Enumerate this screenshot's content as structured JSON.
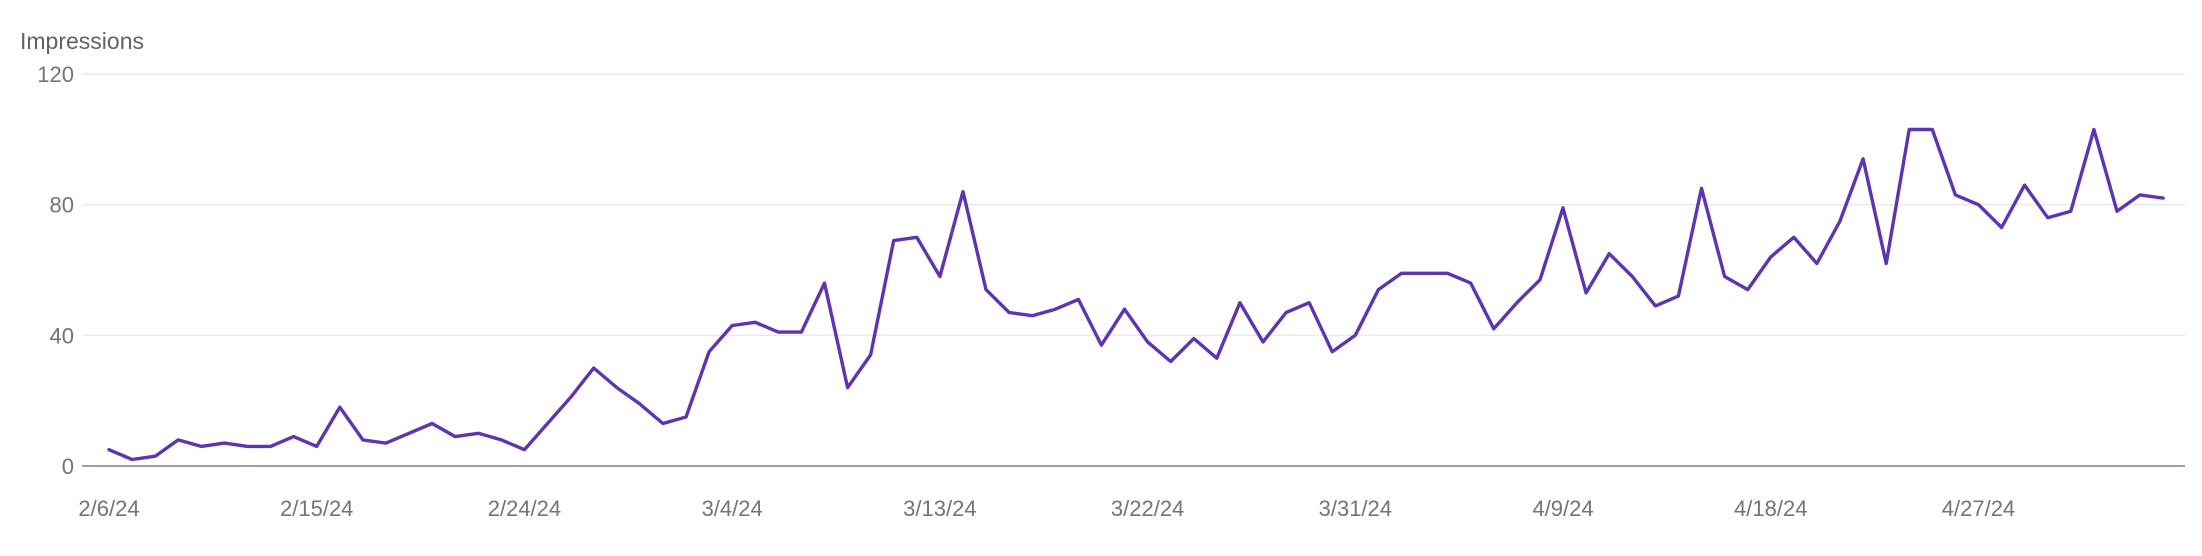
{
  "chart_data": {
    "type": "line",
    "ylabel": "Impressions",
    "ylim": [
      0,
      120
    ],
    "yticks": [
      0,
      40,
      80,
      120
    ],
    "grid": true,
    "color": "#5e35b1",
    "x_start": "2/6/24",
    "x_tick_labels": [
      "2/6/24",
      "2/15/24",
      "2/24/24",
      "3/4/24",
      "3/13/24",
      "3/22/24",
      "3/31/24",
      "4/9/24",
      "4/18/24",
      "4/27/24"
    ],
    "series": [
      {
        "values": [
          5,
          2,
          3,
          8,
          6,
          7,
          6,
          6,
          9,
          6,
          18,
          8,
          7,
          10,
          13,
          9,
          10,
          8,
          5,
          13,
          21,
          30,
          24,
          19,
          13,
          15,
          35,
          43,
          44,
          41,
          41,
          56,
          24,
          34,
          69,
          70,
          58,
          84,
          54,
          47,
          46,
          48,
          51,
          37,
          48,
          38,
          32,
          39,
          33,
          50,
          38,
          47,
          50,
          35,
          40,
          54,
          59,
          59,
          59,
          56,
          42,
          50,
          57,
          79,
          53,
          65,
          58,
          49,
          52,
          85,
          58,
          54,
          64,
          70,
          62,
          75,
          94,
          62,
          103,
          103,
          83,
          80,
          73,
          86,
          76,
          78,
          103,
          78,
          83,
          82
        ]
      }
    ]
  }
}
